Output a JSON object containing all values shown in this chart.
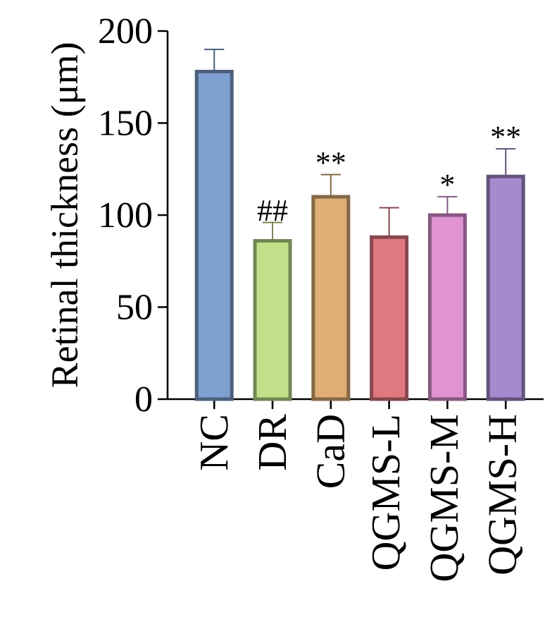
{
  "chart_data": {
    "type": "bar",
    "ylabel": "Retinal thickness (μm)",
    "categories": [
      "NC",
      "DR",
      "CaD",
      "QGMS-L",
      "QGMS-M",
      "QGMS-H"
    ],
    "values": [
      178,
      86,
      110,
      88,
      100,
      121
    ],
    "errors": [
      12,
      10,
      12,
      16,
      10,
      15
    ],
    "colors": [
      "#7ea0d0",
      "#c2e08a",
      "#deae74",
      "#e07880",
      "#df93d3",
      "#a68ad0"
    ],
    "ylim": [
      0,
      200
    ],
    "yticks": [
      0,
      50,
      100,
      150,
      200
    ],
    "grid": false,
    "annotations": [
      {
        "text": "##",
        "x": "DR",
        "y": 96
      },
      {
        "text": "**",
        "x": "CaD",
        "y": 122
      },
      {
        "text": "*",
        "x": "QGMS-M",
        "y": 110
      },
      {
        "text": "**",
        "x": "QGMS-H",
        "y": 136
      }
    ]
  }
}
